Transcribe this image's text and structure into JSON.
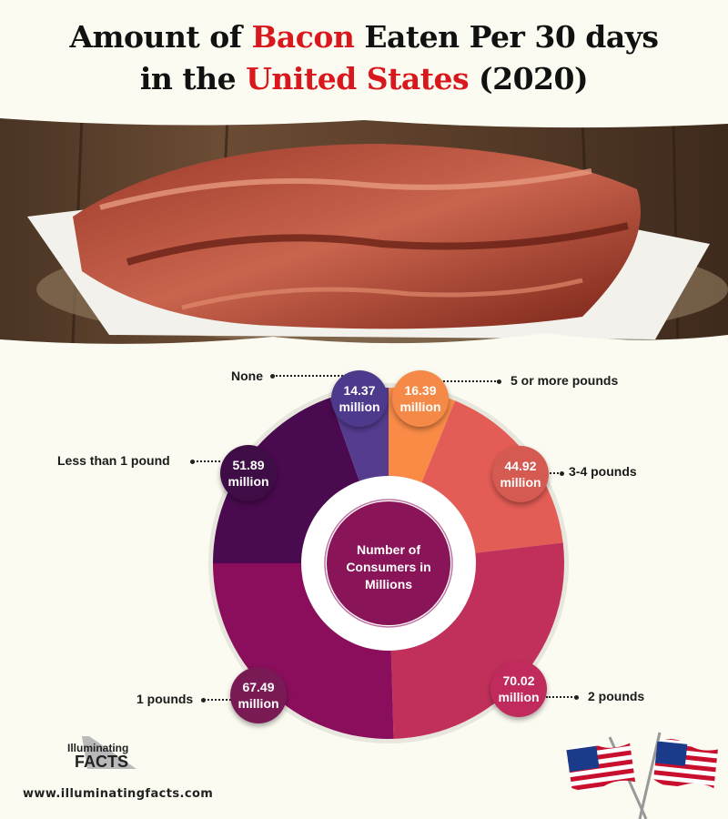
{
  "title": {
    "line1_pre": "Amount of ",
    "line1_red": "Bacon",
    "line1_post": " Eaten Per 30 days",
    "line2_pre": "in the ",
    "line2_red": "United States",
    "line2_post": " (2020)"
  },
  "colors": {
    "accent_red": "#d9181e",
    "background": "#fbfbf1"
  },
  "chart_data": {
    "type": "pie",
    "variant": "donut",
    "title": "Amount of Bacon Eaten Per 30 days in the United States (2020)",
    "center_label": "Number of Consumers in Millions",
    "unit": "million",
    "categories": [
      "5 or more pounds",
      "3-4 pounds",
      "2 pounds",
      "1 pounds",
      "Less than 1 pound",
      "None"
    ],
    "values": [
      16.39,
      44.92,
      70.02,
      67.49,
      51.89,
      14.37
    ],
    "value_labels": [
      "16.39 million",
      "44.92 million",
      "70.02 million",
      "67.49 million",
      "51.89 million",
      "14.37 million"
    ],
    "colors": [
      "#f98b47",
      "#e35c55",
      "#c0305a",
      "#8a0e5c",
      "#4a0a4f",
      "#553c8f"
    ],
    "bubble_colors": [
      "#f58a48",
      "#d45a52",
      "#c02a5c",
      "#7a1a55",
      "#3e0d45",
      "#4d3a8c"
    ],
    "start_angle": "top, clockwise"
  },
  "footer": {
    "logo_line1": "Illuminating",
    "logo_line2": "FACTS",
    "url": "www.illuminatingfacts.com"
  }
}
